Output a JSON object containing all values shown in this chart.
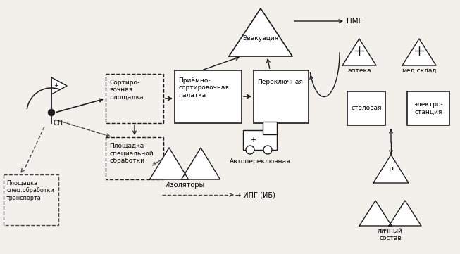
{
  "bg_color": "#f2f0eb",
  "line_color": "#1a1a1a",
  "dashed_color": "#444444",
  "labels": {
    "pmg": "ПМГ",
    "evakuatsiya": "Эвакуация",
    "priemno": "Приёмно-\nсортировочная\nпалатка",
    "pereklyuchnaya": "Переключная",
    "sortirovochnaya": "Сортиро-\nвочная\nплощадка",
    "ploshchadka_spec": "Площадка\nспециальной\nобработки",
    "izolyatory": "Изоляторы",
    "ipg": "→ ИПГ (ИБ)",
    "avtoper": "Автопереключная",
    "sp": "СП",
    "ploshchadka_transp": "Площадка\nспец.обработки\nтранспорта",
    "apteka": "аптека",
    "med_sklad": "мед.склад",
    "stolovaya": "столовая",
    "elektrostantsiya": "электро-\nстанция",
    "lichny_sostav": "личный\nсостав",
    "r_label": "Р"
  }
}
